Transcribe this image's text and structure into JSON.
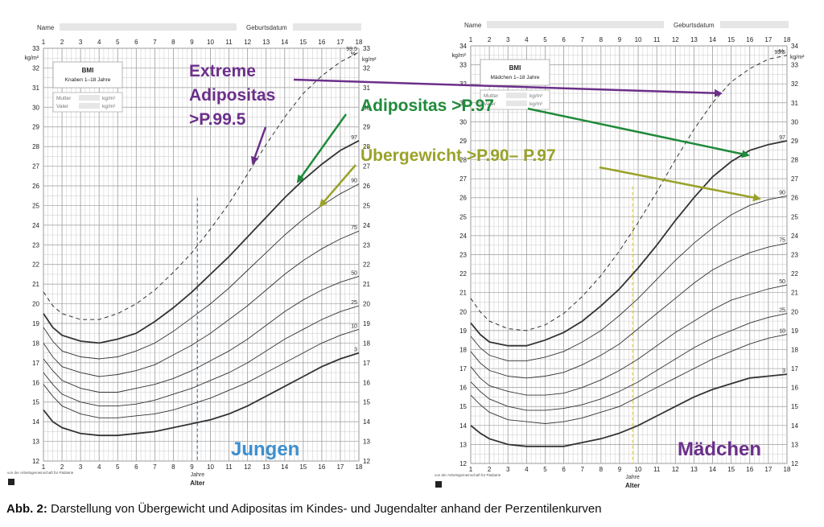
{
  "caption": {
    "label": "Abb. 2:",
    "text": " Darstellung von Übergewicht und Adipositas im Kindes- und Jugendalter anhand der Perzentilenkurven"
  },
  "annotations": {
    "extreme_1": "Extreme",
    "extreme_2": "Adipositas",
    "extreme_3": ">P.99.5",
    "adipositas": "Adipositas >P.97",
    "uebergewicht": "Übergewicht >P.90– P.97",
    "jungen": "Jungen",
    "maedchen": "Mädchen"
  },
  "colors": {
    "purple": "#6b2f8a",
    "green": "#1f8a3a",
    "olive": "#9aa22a",
    "blue": "#3c8fd0",
    "grid": "#bdbdbd",
    "curve": "#333333"
  },
  "chart_data": [
    {
      "type": "line",
      "header": {
        "name_label": "Name",
        "birth_label": "Geburtsdatum"
      },
      "box": {
        "title": "BMI",
        "subtitle": "Knaben 1–18 Jahre",
        "mutter": "Mutter",
        "vater": "Vater",
        "unit": "kg/m²"
      },
      "ylabel": "kg/m²",
      "right_unit_pct": "%",
      "right_unit": "kg/m²",
      "xlabel_1": "Jahre",
      "xlabel_2": "Alter",
      "publisher": "von der Arbeitsgemeinschaft für Pädiatrie",
      "xlim": [
        1,
        18
      ],
      "ylim": [
        12,
        33
      ],
      "x_ticks": [
        "1",
        "2",
        "3",
        "4",
        "5",
        "6",
        "7",
        "8",
        "9",
        "10",
        "11",
        "12",
        "13",
        "14",
        "15",
        "16",
        "17",
        "18"
      ],
      "y_ticks": [
        "12",
        "13",
        "14",
        "15",
        "16",
        "17",
        "18",
        "19",
        "20",
        "21",
        "22",
        "23",
        "24",
        "25",
        "26",
        "27",
        "28",
        "29",
        "30",
        "31",
        "32",
        "33"
      ],
      "marker_age": 9.3,
      "x": [
        1,
        1.5,
        2,
        3,
        4,
        5,
        6,
        7,
        8,
        9,
        10,
        11,
        12,
        13,
        14,
        15,
        16,
        17,
        18
      ],
      "series": [
        {
          "name": "99.5",
          "dashed": true,
          "values": [
            20.6,
            19.9,
            19.5,
            19.2,
            19.2,
            19.5,
            20.0,
            20.7,
            21.6,
            22.6,
            23.8,
            25.1,
            26.6,
            28.1,
            29.5,
            30.7,
            31.6,
            32.3,
            32.8
          ]
        },
        {
          "name": "97",
          "bold": true,
          "values": [
            19.5,
            18.8,
            18.4,
            18.1,
            18.0,
            18.2,
            18.5,
            19.1,
            19.8,
            20.6,
            21.5,
            22.4,
            23.4,
            24.4,
            25.4,
            26.3,
            27.1,
            27.8,
            28.3
          ]
        },
        {
          "name": "90",
          "values": [
            18.8,
            18.1,
            17.6,
            17.3,
            17.2,
            17.3,
            17.6,
            18.0,
            18.6,
            19.3,
            20.0,
            20.8,
            21.7,
            22.6,
            23.5,
            24.3,
            25.0,
            25.6,
            26.1
          ]
        },
        {
          "name": "75",
          "values": [
            18.0,
            17.3,
            16.8,
            16.5,
            16.3,
            16.4,
            16.6,
            16.9,
            17.4,
            17.9,
            18.5,
            19.2,
            19.9,
            20.7,
            21.5,
            22.2,
            22.8,
            23.3,
            23.7
          ]
        },
        {
          "name": "50",
          "values": [
            17.2,
            16.6,
            16.1,
            15.7,
            15.5,
            15.5,
            15.7,
            15.9,
            16.2,
            16.6,
            17.1,
            17.6,
            18.2,
            18.9,
            19.6,
            20.2,
            20.7,
            21.1,
            21.4
          ]
        },
        {
          "name": "25",
          "values": [
            16.5,
            15.9,
            15.4,
            15.0,
            14.8,
            14.8,
            14.9,
            15.1,
            15.4,
            15.7,
            16.1,
            16.5,
            17.0,
            17.6,
            18.2,
            18.7,
            19.2,
            19.6,
            19.9
          ]
        },
        {
          "name": "10",
          "values": [
            15.9,
            15.3,
            14.8,
            14.4,
            14.2,
            14.2,
            14.3,
            14.4,
            14.6,
            14.9,
            15.2,
            15.6,
            16.0,
            16.5,
            17.0,
            17.5,
            18.0,
            18.4,
            18.7
          ]
        },
        {
          "name": "3",
          "bold": true,
          "values": [
            14.6,
            14.0,
            13.7,
            13.4,
            13.3,
            13.3,
            13.4,
            13.5,
            13.7,
            13.9,
            14.1,
            14.4,
            14.8,
            15.3,
            15.8,
            16.3,
            16.8,
            17.2,
            17.5
          ]
        }
      ]
    },
    {
      "type": "line",
      "header": {
        "name_label": "Name",
        "birth_label": "Geburtsdatum"
      },
      "box": {
        "title": "BMI",
        "subtitle": "Mädchen 1–18 Jahre",
        "mutter": "Mutter",
        "vater": "Vater",
        "unit": "kg/m²"
      },
      "ylabel": "kg/m²",
      "right_unit_pct": "%",
      "right_unit": "kg/m²",
      "xlabel_1": "Jahre",
      "xlabel_2": "Alter",
      "publisher": "von der Arbeitsgemeinschaft für Pädiatrie",
      "xlim": [
        1,
        18
      ],
      "ylim": [
        12,
        34
      ],
      "x_ticks": [
        "1",
        "2",
        "3",
        "4",
        "5",
        "6",
        "7",
        "8",
        "9",
        "10",
        "11",
        "12",
        "13",
        "14",
        "15",
        "16",
        "17",
        "18"
      ],
      "y_ticks": [
        "12",
        "13",
        "14",
        "15",
        "16",
        "17",
        "18",
        "19",
        "20",
        "21",
        "22",
        "23",
        "24",
        "25",
        "26",
        "27",
        "28",
        "29",
        "30",
        "31",
        "32",
        "33",
        "34"
      ],
      "marker_age": 9.7,
      "x": [
        1,
        1.5,
        2,
        3,
        4,
        5,
        6,
        7,
        8,
        9,
        10,
        11,
        12,
        13,
        14,
        15,
        16,
        17,
        18
      ],
      "series": [
        {
          "name": "99.5",
          "dashed": true,
          "values": [
            20.7,
            20.0,
            19.5,
            19.1,
            19.0,
            19.3,
            19.9,
            20.8,
            21.9,
            23.2,
            24.7,
            26.3,
            28.0,
            29.6,
            31.0,
            32.1,
            32.8,
            33.3,
            33.5
          ]
        },
        {
          "name": "97",
          "bold": true,
          "values": [
            19.4,
            18.8,
            18.4,
            18.2,
            18.2,
            18.5,
            18.9,
            19.5,
            20.3,
            21.2,
            22.3,
            23.5,
            24.8,
            26.0,
            27.1,
            27.9,
            28.5,
            28.8,
            29.0
          ]
        },
        {
          "name": "90",
          "values": [
            18.7,
            18.1,
            17.7,
            17.4,
            17.4,
            17.6,
            17.9,
            18.4,
            19.0,
            19.8,
            20.7,
            21.7,
            22.7,
            23.6,
            24.4,
            25.1,
            25.6,
            25.9,
            26.1
          ]
        },
        {
          "name": "75",
          "values": [
            17.9,
            17.3,
            16.9,
            16.6,
            16.5,
            16.6,
            16.8,
            17.2,
            17.7,
            18.3,
            19.1,
            19.9,
            20.7,
            21.5,
            22.2,
            22.7,
            23.1,
            23.4,
            23.6
          ]
        },
        {
          "name": "50",
          "values": [
            17.1,
            16.5,
            16.1,
            15.8,
            15.6,
            15.6,
            15.7,
            16.0,
            16.4,
            16.9,
            17.5,
            18.2,
            18.9,
            19.5,
            20.1,
            20.6,
            20.9,
            21.2,
            21.4
          ]
        },
        {
          "name": "25",
          "values": [
            16.3,
            15.8,
            15.4,
            15.0,
            14.8,
            14.8,
            14.9,
            15.1,
            15.4,
            15.8,
            16.3,
            16.9,
            17.5,
            18.1,
            18.6,
            19.0,
            19.4,
            19.7,
            19.9
          ]
        },
        {
          "name": "10",
          "values": [
            15.6,
            15.1,
            14.7,
            14.3,
            14.2,
            14.1,
            14.2,
            14.4,
            14.7,
            15.0,
            15.5,
            16.0,
            16.5,
            17.0,
            17.5,
            17.9,
            18.3,
            18.6,
            18.8
          ]
        },
        {
          "name": "3",
          "bold": true,
          "values": [
            14.0,
            13.6,
            13.3,
            13.0,
            12.9,
            12.9,
            12.9,
            13.1,
            13.3,
            13.6,
            14.0,
            14.5,
            15.0,
            15.5,
            15.9,
            16.2,
            16.5,
            16.6,
            16.7
          ]
        }
      ]
    }
  ]
}
